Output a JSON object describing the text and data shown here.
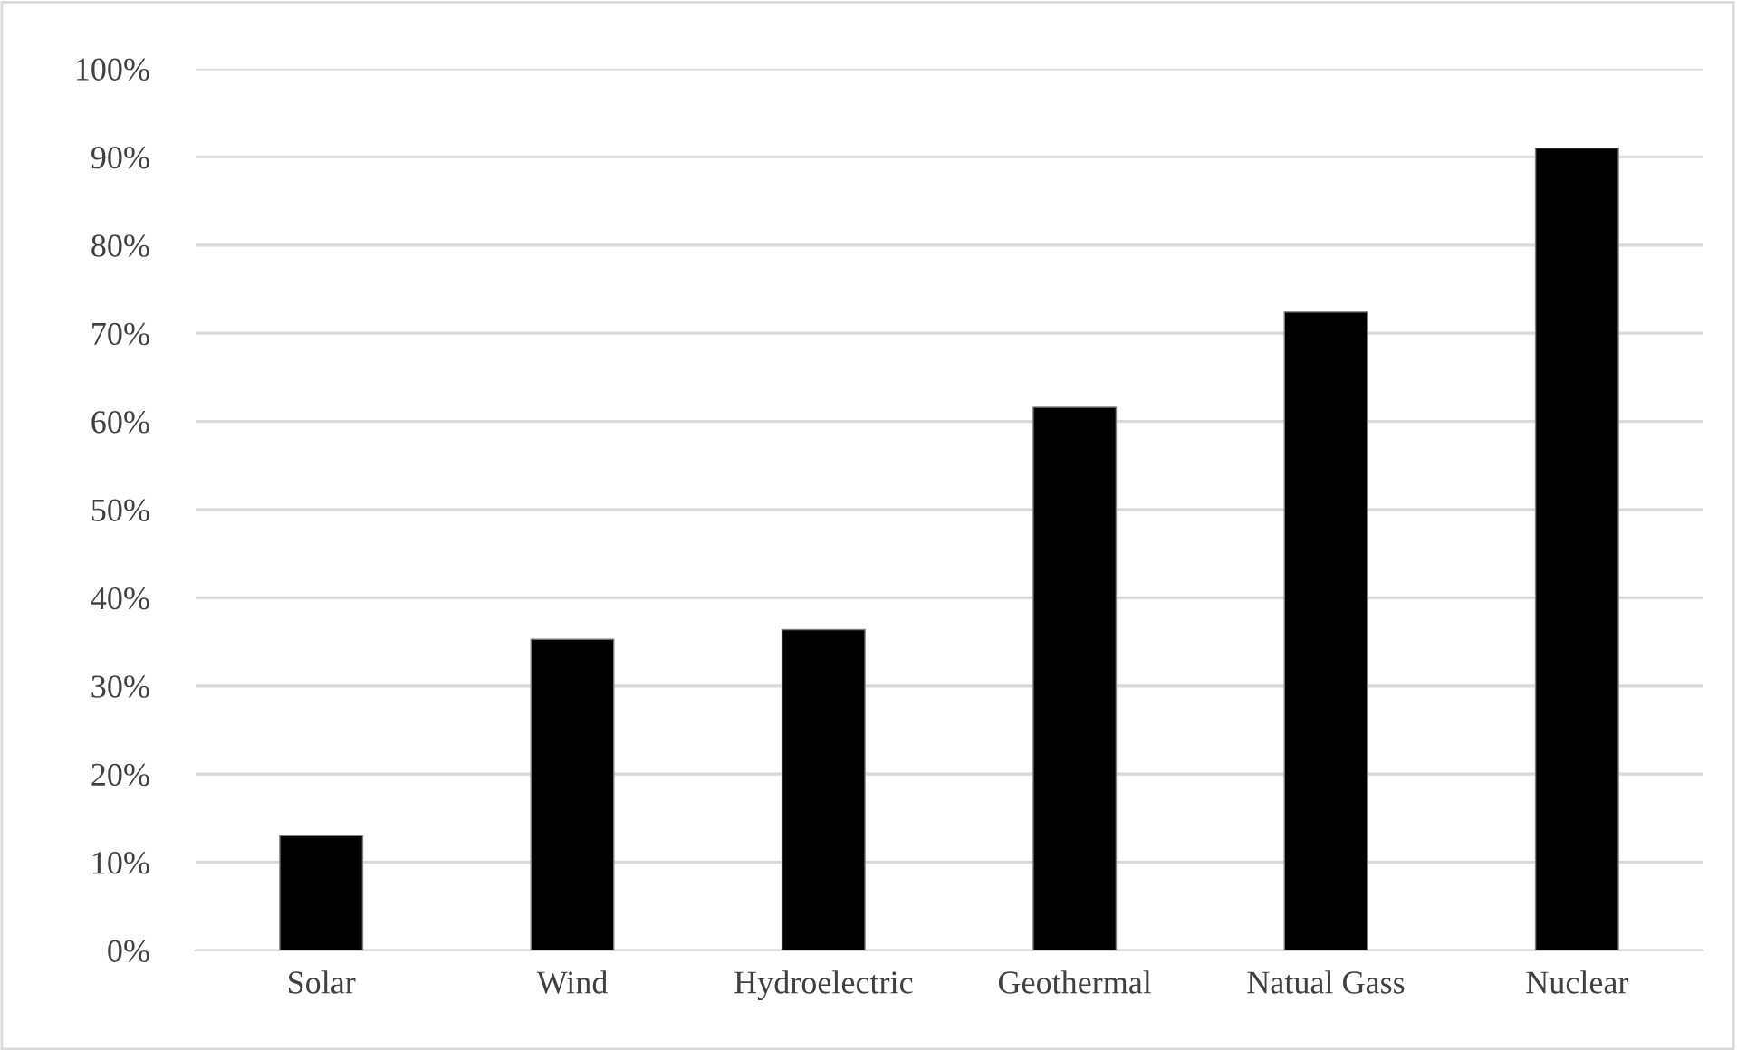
{
  "chart_data": {
    "type": "bar",
    "categories": [
      "Solar",
      "Wind",
      "Hydroelectric",
      "Geothermal",
      "Natual Gass",
      "Nuclear"
    ],
    "values": [
      13.0,
      35.3,
      36.4,
      61.6,
      72.4,
      91.0
    ],
    "color": "#000000",
    "ylim": [
      0,
      100
    ],
    "yticks": [
      {
        "value": 0,
        "label": "0%"
      },
      {
        "value": 10,
        "label": "10%"
      },
      {
        "value": 20,
        "label": "20%"
      },
      {
        "value": 30,
        "label": "30%"
      },
      {
        "value": 40,
        "label": "40%"
      },
      {
        "value": 50,
        "label": "50%"
      },
      {
        "value": 60,
        "label": "60%"
      },
      {
        "value": 70,
        "label": "70%"
      },
      {
        "value": 80,
        "label": "80%"
      },
      {
        "value": 90,
        "label": "90%"
      },
      {
        "value": 100,
        "label": "100%"
      }
    ],
    "grid": "y"
  }
}
